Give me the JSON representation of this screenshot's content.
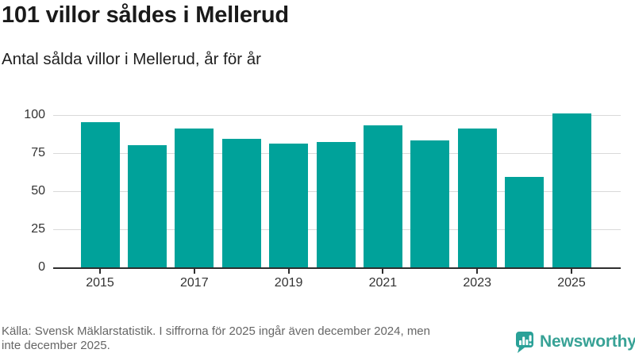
{
  "header": {
    "title": "101 villor såldes i Mellerud",
    "subtitle": "Antal sålda villor i Mellerud, år för år"
  },
  "chart_data": {
    "type": "bar",
    "categories": [
      "2015",
      "2016",
      "2017",
      "2018",
      "2019",
      "2020",
      "2021",
      "2022",
      "2023",
      "2024",
      "2025"
    ],
    "values": [
      95,
      80,
      91,
      84,
      81,
      82,
      93,
      83,
      91,
      59,
      101
    ],
    "title": "101 villor såldes i Mellerud",
    "subtitle": "Antal sålda villor i Mellerud, år för år",
    "xlabel": "",
    "ylabel": "",
    "ylim": [
      0,
      100
    ],
    "yticks": [
      0,
      25,
      50,
      75,
      100
    ],
    "xtick_labels": [
      "2015",
      "2017",
      "2019",
      "2021",
      "2023",
      "2025"
    ],
    "grid": "horizontal",
    "legend": "none",
    "bar_color": "#00a29a"
  },
  "footer": {
    "source_line1": "Källa: Svensk Mäklarstatistik. I siffrorna för 2025 ingår även december 2024, men",
    "source_line2": "inte december 2025.",
    "logo_text": "Newsworthy"
  },
  "colors": {
    "accent": "#00a29a",
    "logo": "#38a296",
    "logo_icon": "#2aa198",
    "title_text": "#1a1a1a",
    "axis": "#2e2e2e",
    "grid": "#d9d9d9",
    "footer_text": "#666666"
  }
}
